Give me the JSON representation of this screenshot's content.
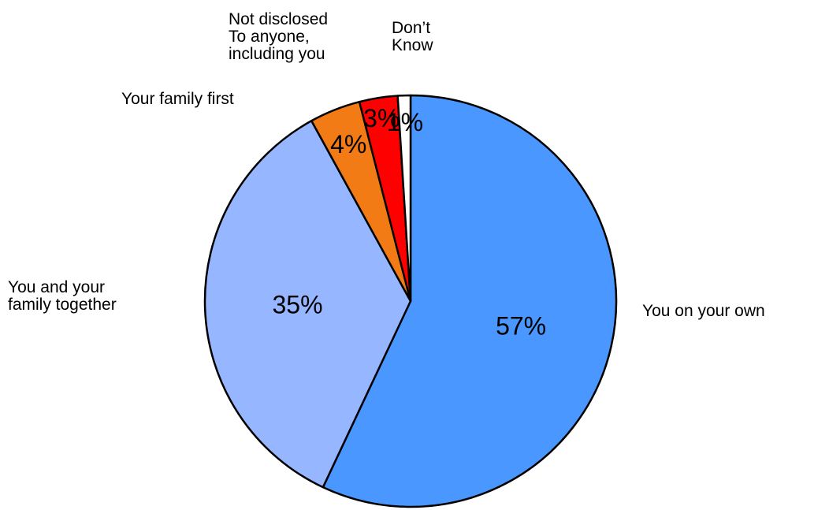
{
  "chart_data": {
    "type": "pie",
    "start_angle_deg": 0,
    "direction": "clockwise",
    "slices": [
      {
        "label": "You on your own",
        "value": 57,
        "value_label": "57%",
        "color": "#4a98ff"
      },
      {
        "label": "You and your\nfamily together",
        "value": 35,
        "value_label": "35%",
        "color": "#96b6ff"
      },
      {
        "label": "Your family first",
        "value": 4,
        "value_label": "4%",
        "color": "#f37b15"
      },
      {
        "label": "Not disclosed\nTo anyone,\nincluding you",
        "value": 3,
        "value_label": "3%",
        "color": "#ff0000"
      },
      {
        "label": "Don’t\nKnow",
        "value": 1,
        "value_label": "1%",
        "color": "#ffffff"
      }
    ]
  }
}
